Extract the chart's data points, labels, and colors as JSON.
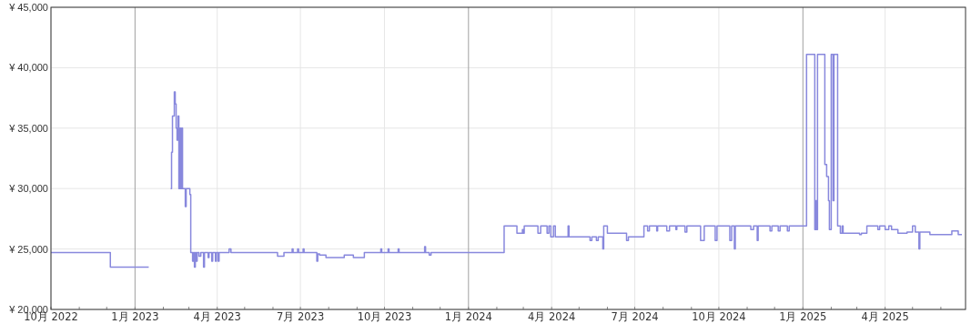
{
  "chart_data": {
    "type": "step",
    "xlim": [
      "2022-10-01",
      "2025-06-28"
    ],
    "ylim": [
      20000,
      45000
    ],
    "yticks": [
      {
        "value": 20000,
        "label": "¥ 20,000"
      },
      {
        "value": 25000,
        "label": "¥ 25,000"
      },
      {
        "value": 30000,
        "label": "¥ 30,000"
      },
      {
        "value": 35000,
        "label": "¥ 35,000"
      },
      {
        "value": 40000,
        "label": "¥ 40,000"
      },
      {
        "value": 45000,
        "label": "¥ 45,000"
      }
    ],
    "xticks": [
      {
        "value": "2022-10-01",
        "label": "10月 2022"
      },
      {
        "value": "2022-11-01",
        "label": null
      },
      {
        "value": "2022-12-01",
        "label": null
      },
      {
        "value": "2023-01-01",
        "label": "1月 2023"
      },
      {
        "value": "2023-02-01",
        "label": null
      },
      {
        "value": "2023-03-01",
        "label": null
      },
      {
        "value": "2023-04-01",
        "label": "4月 2023"
      },
      {
        "value": "2023-05-01",
        "label": null
      },
      {
        "value": "2023-06-01",
        "label": null
      },
      {
        "value": "2023-07-01",
        "label": "7月 2023"
      },
      {
        "value": "2023-08-01",
        "label": null
      },
      {
        "value": "2023-09-01",
        "label": null
      },
      {
        "value": "2023-10-01",
        "label": "10月 2023"
      },
      {
        "value": "2023-11-01",
        "label": null
      },
      {
        "value": "2023-12-01",
        "label": null
      },
      {
        "value": "2024-01-01",
        "label": "1月 2024"
      },
      {
        "value": "2024-02-01",
        "label": null
      },
      {
        "value": "2024-03-01",
        "label": null
      },
      {
        "value": "2024-04-01",
        "label": "4月 2024"
      },
      {
        "value": "2024-05-01",
        "label": null
      },
      {
        "value": "2024-06-01",
        "label": null
      },
      {
        "value": "2024-07-01",
        "label": "7月 2024"
      },
      {
        "value": "2024-08-01",
        "label": null
      },
      {
        "value": "2024-09-01",
        "label": null
      },
      {
        "value": "2024-10-01",
        "label": "10月 2024"
      },
      {
        "value": "2024-11-01",
        "label": null
      },
      {
        "value": "2024-12-01",
        "label": null
      },
      {
        "value": "2025-01-01",
        "label": "1月 2025"
      },
      {
        "value": "2025-02-01",
        "label": null
      },
      {
        "value": "2025-03-01",
        "label": null
      },
      {
        "value": "2025-04-01",
        "label": "4月 2025"
      },
      {
        "value": "2025-05-01",
        "label": null
      },
      {
        "value": "2025-06-01",
        "label": null
      }
    ],
    "grid": true,
    "series": [
      {
        "color": "#8888dd",
        "x": [
          "2022-10-01",
          "2022-12-05",
          "2023-01-15",
          "2023-01-16",
          "2023-02-09",
          "2023-02-10",
          "2023-02-11",
          "2023-02-13",
          "2023-02-14",
          "2023-02-15",
          "2023-02-16",
          "2023-02-17",
          "2023-02-18",
          "2023-02-19",
          "2023-02-20",
          "2023-02-21",
          "2023-02-22",
          "2023-02-25",
          "2023-02-26",
          "2023-03-02",
          "2023-03-03",
          "2023-03-05",
          "2023-03-06",
          "2023-03-07",
          "2023-03-08",
          "2023-03-09",
          "2023-03-10",
          "2023-03-12",
          "2023-03-14",
          "2023-03-17",
          "2023-03-18",
          "2023-03-22",
          "2023-03-23",
          "2023-03-26",
          "2023-03-27",
          "2023-03-30",
          "2023-03-31",
          "2023-04-02",
          "2023-04-03",
          "2023-04-14",
          "2023-04-16",
          "2023-06-06",
          "2023-06-13",
          "2023-06-22",
          "2023-06-23",
          "2023-06-28",
          "2023-06-29",
          "2023-07-04",
          "2023-07-05",
          "2023-07-19",
          "2023-07-20",
          "2023-07-22",
          "2023-07-29",
          "2023-08-18",
          "2023-08-28",
          "2023-09-09",
          "2023-09-27",
          "2023-09-28",
          "2023-10-05",
          "2023-10-06",
          "2023-10-16",
          "2023-10-17",
          "2023-11-14",
          "2023-11-15",
          "2023-11-19",
          "2023-11-21",
          "2024-02-09",
          "2024-02-23",
          "2024-02-29",
          "2024-03-01",
          "2024-03-02",
          "2024-03-17",
          "2024-03-20",
          "2024-03-27",
          "2024-03-29",
          "2024-03-31",
          "2024-04-03",
          "2024-04-05",
          "2024-04-19",
          "2024-04-20",
          "2024-05-13",
          "2024-05-15",
          "2024-05-20",
          "2024-05-22",
          "2024-05-27",
          "2024-05-28",
          "2024-06-01",
          "2024-06-22",
          "2024-06-24",
          "2024-07-11",
          "2024-07-15",
          "2024-07-17",
          "2024-07-25",
          "2024-07-26",
          "2024-08-05",
          "2024-08-08",
          "2024-08-15",
          "2024-08-16",
          "2024-08-25",
          "2024-08-27",
          "2024-09-11",
          "2024-09-15",
          "2024-09-27",
          "2024-09-29",
          "2024-10-13",
          "2024-10-15",
          "2024-10-18",
          "2024-10-19",
          "2024-11-05",
          "2024-11-08",
          "2024-11-12",
          "2024-11-13",
          "2024-11-26",
          "2024-11-28",
          "2024-12-05",
          "2024-12-07",
          "2024-12-15",
          "2024-12-17",
          "2025-01-05",
          "2025-01-14",
          "2025-01-15",
          "2025-01-16",
          "2025-01-17",
          "2025-01-25",
          "2025-01-27",
          "2025-01-29",
          "2025-01-30",
          "2025-02-01",
          "2025-02-03",
          "2025-02-04",
          "2025-02-08",
          "2025-02-11",
          "2025-02-13",
          "2025-02-14",
          "2025-03-04",
          "2025-03-06",
          "2025-03-12",
          "2025-03-24",
          "2025-03-26",
          "2025-04-01",
          "2025-04-05",
          "2025-04-08",
          "2025-04-15",
          "2025-04-25",
          "2025-05-01",
          "2025-05-04",
          "2025-05-08",
          "2025-05-09",
          "2025-05-20",
          "2025-06-13",
          "2025-06-20",
          "2025-06-24"
        ],
        "values": [
          24700,
          23500,
          23500,
          null,
          30000,
          33000,
          36000,
          38000,
          37000,
          35000,
          34000,
          36000,
          30000,
          35000,
          30000,
          35000,
          30000,
          28500,
          30000,
          29500,
          24700,
          24000,
          24700,
          23500,
          24700,
          24000,
          24700,
          24400,
          24700,
          23500,
          24700,
          24300,
          24700,
          24000,
          24700,
          24000,
          24700,
          24000,
          24700,
          25000,
          24700,
          24400,
          24700,
          25000,
          24700,
          25000,
          24700,
          25000,
          24700,
          24000,
          24600,
          24500,
          24300,
          24500,
          24300,
          24700,
          25000,
          24700,
          25000,
          24700,
          25000,
          24700,
          25200,
          24700,
          24500,
          24700,
          26900,
          26300,
          26600,
          26300,
          26900,
          26300,
          26900,
          26300,
          26900,
          26000,
          26900,
          26000,
          26900,
          26000,
          25700,
          26000,
          25700,
          26000,
          25000,
          26900,
          26300,
          25700,
          26000,
          26900,
          26500,
          26900,
          26500,
          26900,
          26500,
          26900,
          26600,
          26900,
          26400,
          26900,
          25700,
          26900,
          25700,
          26900,
          25700,
          26900,
          25000,
          26900,
          26600,
          26900,
          25700,
          26900,
          26500,
          26900,
          26500,
          26900,
          26500,
          26900,
          41100,
          26600,
          29000,
          26600,
          41100,
          32000,
          31000,
          29000,
          26600,
          41100,
          29000,
          41100,
          26900,
          26300,
          26900,
          26300,
          26200,
          26300,
          26900,
          26600,
          26900,
          26600,
          26900,
          26600,
          26300,
          26400,
          26900,
          26400,
          25000,
          26400,
          26200,
          26500,
          26200,
          26200
        ]
      }
    ]
  }
}
